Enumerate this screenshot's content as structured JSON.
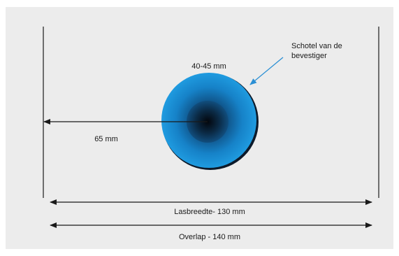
{
  "labels": {
    "diameter": "40-45 mm",
    "distance": "65 mm",
    "callout_line1": "Schotel van de",
    "callout_line2": "bevestiger",
    "weld_width": "Lasbreedte- 130 mm",
    "overlap": "Overlap - 140 mm"
  },
  "colors": {
    "panel": "#ececec",
    "line": "#1a1a1a",
    "callout_arrow": "#2a8fd4",
    "disc_outer": "#1b8fd6",
    "disc_center": "#0a0f1e",
    "disc_rim": "#0d1a2a"
  }
}
